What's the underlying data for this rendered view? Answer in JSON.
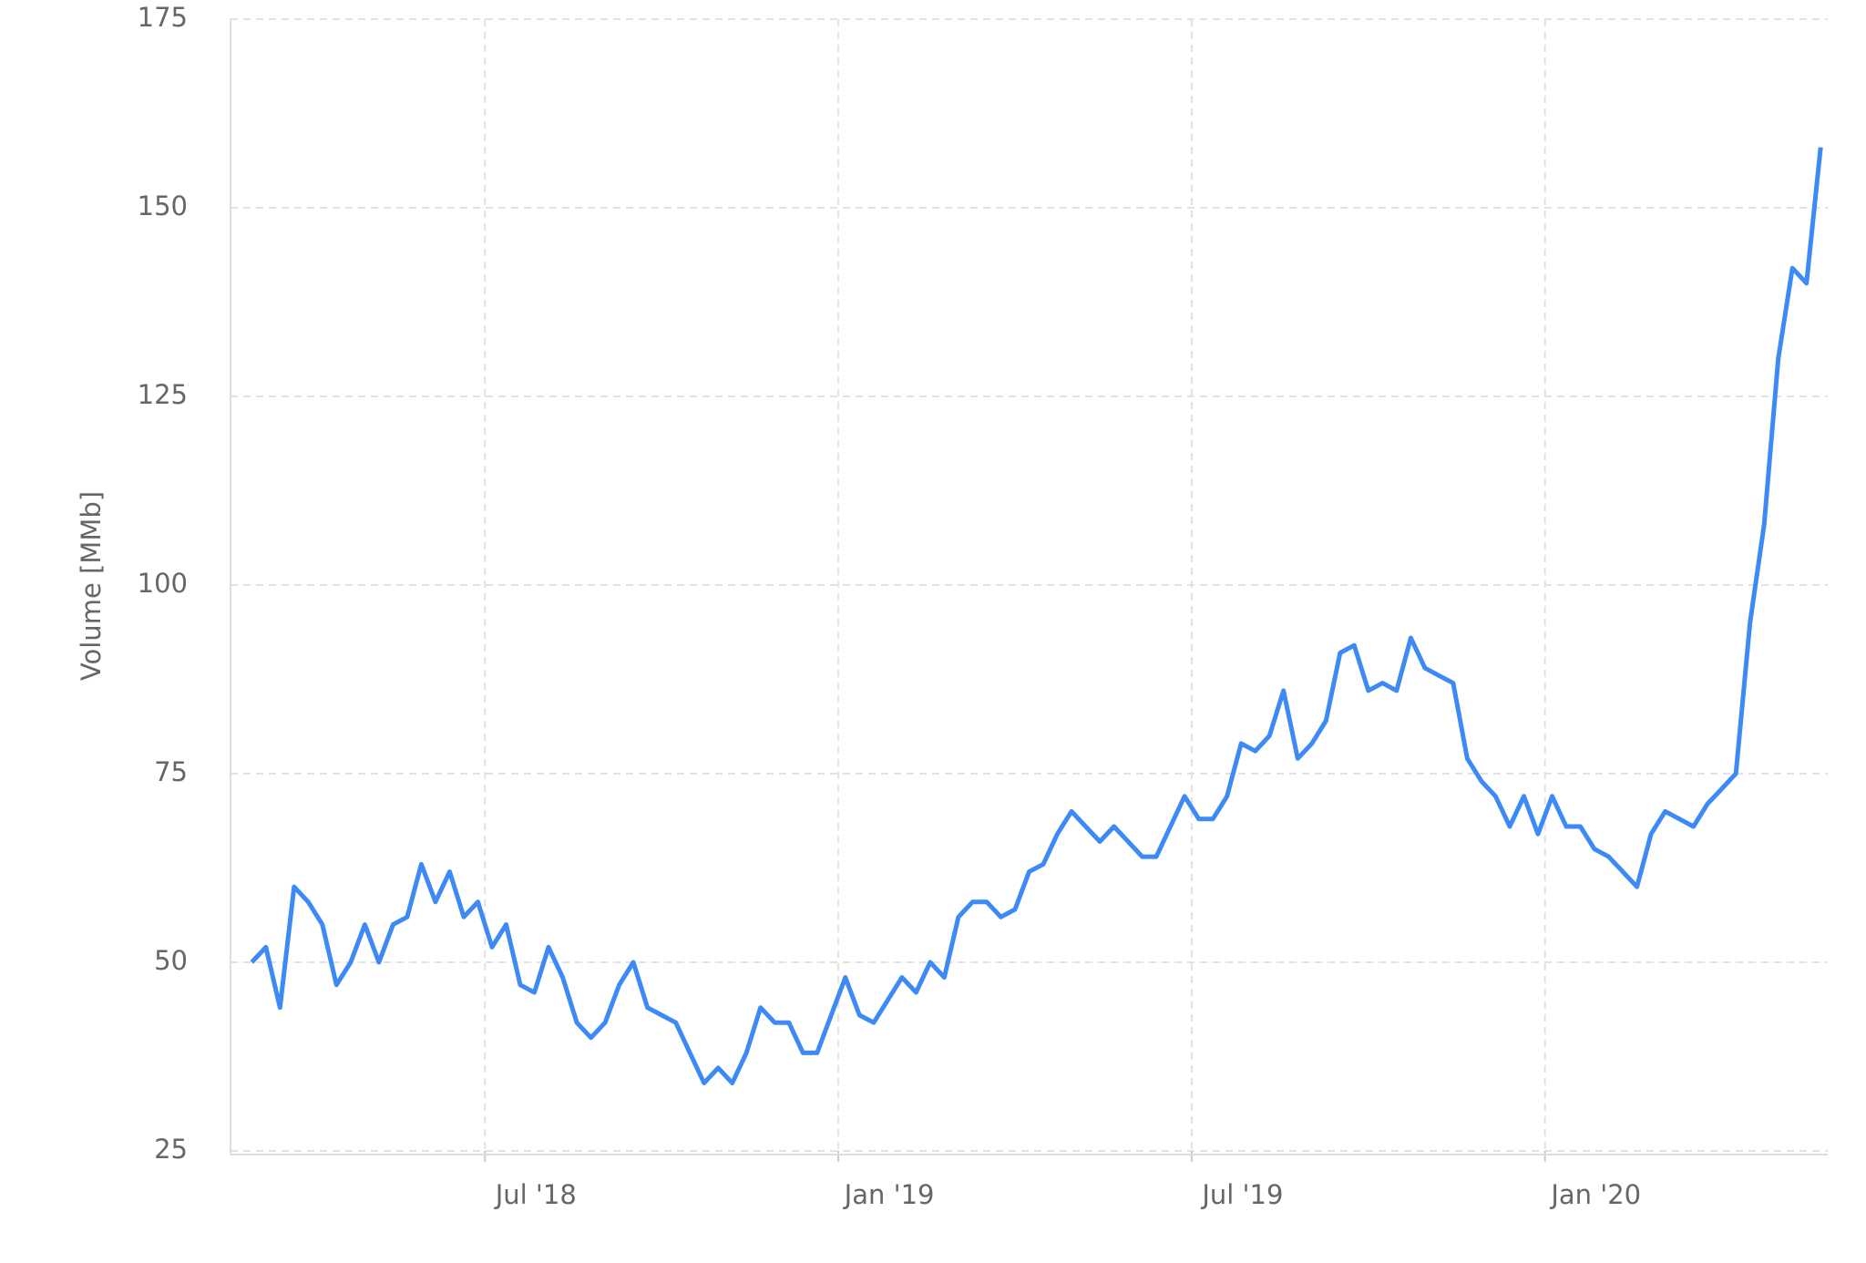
{
  "chart_data": {
    "type": "line",
    "y_label": "Volume [MMb]",
    "x": [
      2018.17,
      2018.19,
      2018.21,
      2018.23,
      2018.25,
      2018.27,
      2018.29,
      2018.31,
      2018.33,
      2018.35,
      2018.37,
      2018.39,
      2018.41,
      2018.43,
      2018.45,
      2018.47,
      2018.49,
      2018.51,
      2018.53,
      2018.55,
      2018.57,
      2018.59,
      2018.61,
      2018.63,
      2018.65,
      2018.67,
      2018.69,
      2018.71,
      2018.73,
      2018.75,
      2018.77,
      2018.79,
      2018.81,
      2018.83,
      2018.85,
      2018.87,
      2018.89,
      2018.91,
      2018.93,
      2018.95,
      2018.97,
      2018.99,
      2019.01,
      2019.03,
      2019.05,
      2019.07,
      2019.09,
      2019.11,
      2019.13,
      2019.15,
      2019.17,
      2019.19,
      2019.21,
      2019.23,
      2019.25,
      2019.27,
      2019.29,
      2019.31,
      2019.33,
      2019.35,
      2019.37,
      2019.39,
      2019.41,
      2019.43,
      2019.45,
      2019.47,
      2019.49,
      2019.51,
      2019.53,
      2019.55,
      2019.57,
      2019.59,
      2019.61,
      2019.63,
      2019.65,
      2019.67,
      2019.69,
      2019.71,
      2019.73,
      2019.75,
      2019.77,
      2019.79,
      2019.81,
      2019.83,
      2019.85,
      2019.87,
      2019.89,
      2019.91,
      2019.93,
      2019.95,
      2019.97,
      2019.99,
      2020.01,
      2020.03,
      2020.05,
      2020.07,
      2020.09,
      2020.11,
      2020.13,
      2020.15,
      2020.17,
      2020.19,
      2020.21,
      2020.23,
      2020.25,
      2020.27,
      2020.29,
      2020.31,
      2020.33,
      2020.35,
      2020.37,
      2020.39
    ],
    "series": [
      {
        "name": "Volume",
        "color": "#3d8af7",
        "values": [
          50,
          52,
          44,
          60,
          58,
          55,
          47,
          50,
          55,
          50,
          55,
          56,
          63,
          58,
          62,
          56,
          58,
          52,
          55,
          47,
          46,
          52,
          48,
          42,
          40,
          42,
          47,
          50,
          44,
          43,
          42,
          38,
          34,
          36,
          34,
          38,
          44,
          42,
          42,
          38,
          38,
          43,
          48,
          43,
          42,
          45,
          48,
          46,
          50,
          48,
          56,
          58,
          58,
          56,
          57,
          62,
          63,
          67,
          70,
          68,
          66,
          68,
          66,
          64,
          64,
          68,
          72,
          69,
          69,
          72,
          79,
          78,
          80,
          86,
          77,
          79,
          82,
          91,
          92,
          86,
          87,
          86,
          93,
          89,
          88,
          87,
          77,
          74,
          72,
          68,
          72,
          67,
          72,
          68,
          68,
          65,
          64,
          62,
          60,
          67,
          70,
          69,
          68,
          71,
          73,
          75,
          95,
          108,
          130,
          142,
          140,
          158
        ]
      }
    ],
    "xlim": [
      2018.14,
      2020.4
    ],
    "xticks": [
      {
        "value": 2018.5,
        "label": "Jul '18"
      },
      {
        "value": 2019.0,
        "label": "Jan '19"
      },
      {
        "value": 2019.5,
        "label": "Jul '19"
      },
      {
        "value": 2020.0,
        "label": "Jan '20"
      }
    ],
    "ylim": [
      25,
      175
    ],
    "yticks": [
      25,
      50,
      75,
      100,
      125,
      150,
      175
    ],
    "grid": true
  }
}
